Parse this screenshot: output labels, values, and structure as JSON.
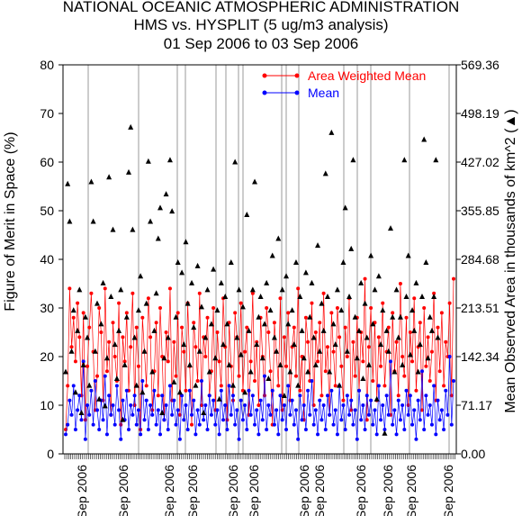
{
  "chart_data": {
    "type": "scatter",
    "title": "NATIONAL OCEANIC ATMOSPHERIC ADMINISTRATION",
    "subtitle": "HMS vs. HYSPLIT (5 ug/m3 analysis)",
    "date_range": "01 Sep 2006 to 03 Sep 2006",
    "ylabel": "Figure of Merit in Space (%)",
    "ylabel_right": "Mean Observed Area in thousands of km^2 (▲)",
    "ylim": [
      0,
      80
    ],
    "ylim_right": [
      0,
      569.36
    ],
    "yticks": [
      0,
      10,
      20,
      30,
      40,
      50,
      60,
      70,
      80
    ],
    "yticks_right": [
      "0.00",
      "71.17",
      "142.34",
      "213.51",
      "284.68",
      "355.85",
      "427.02",
      "498.19",
      "569.36"
    ],
    "x_tick_labels": [
      "Sep 2006",
      "Sep 2006",
      "Sep 2006",
      "Sep 2006",
      "Sep 2006",
      "Sep 2006",
      "Sep 2006",
      "Sep 2006",
      "Sep 2006",
      "Sep 2006",
      "Sep 2006",
      "Sep 2006"
    ],
    "colors": {
      "awm": "#ff0000",
      "mean": "#0000ff",
      "area": "#000000"
    },
    "series": [
      {
        "name": "Area Weighted Mean",
        "color": "#ff0000",
        "values": [
          5,
          14,
          34,
          22,
          28,
          19,
          31,
          24,
          12,
          29,
          7,
          18,
          26,
          33,
          21,
          9,
          16,
          30,
          25,
          11,
          34,
          17,
          23,
          8,
          27,
          20,
          15,
          31,
          6,
          24,
          19,
          29,
          13,
          22,
          33,
          10,
          26,
          18,
          5,
          28,
          21,
          14,
          32,
          24,
          9,
          17,
          27,
          12,
          30,
          20,
          7,
          25,
          19,
          34,
          11,
          23,
          16,
          29,
          8,
          26,
          21,
          13,
          31,
          18,
          6,
          27,
          22,
          15,
          33,
          10,
          24,
          20,
          28,
          12,
          17,
          30,
          9,
          25,
          19,
          14,
          32,
          22,
          7,
          27,
          18,
          11,
          29,
          24,
          16,
          31,
          13,
          21,
          26,
          8,
          19,
          33,
          15,
          23,
          10,
          28,
          20,
          12,
          30,
          25,
          17,
          6,
          27,
          21,
          14,
          32,
          9,
          24,
          18,
          29,
          11,
          22,
          26,
          16,
          34,
          13,
          20,
          7,
          28,
          23,
          15,
          31,
          10,
          25,
          19,
          27,
          12,
          33,
          17,
          22,
          8,
          29,
          21,
          14,
          30,
          24,
          18,
          11,
          26,
          20,
          32,
          9,
          23,
          16,
          28,
          13,
          25,
          19,
          36,
          7,
          22,
          30,
          15,
          27,
          11,
          24,
          18,
          31,
          14,
          21,
          26,
          8,
          29,
          17,
          23,
          12,
          35,
          20,
          16,
          28,
          10,
          25,
          19,
          32,
          13,
          22,
          27,
          9,
          30,
          18,
          24,
          15,
          21,
          33,
          11,
          26,
          17,
          29,
          14,
          23,
          20,
          31,
          12,
          36
        ]
      },
      {
        "name": "Mean",
        "color": "#0000ff",
        "values": [
          4,
          6,
          11,
          8,
          14,
          5,
          9,
          12,
          7,
          19,
          3,
          10,
          8,
          13,
          6,
          15,
          9,
          5,
          11,
          7,
          16,
          4,
          12,
          8,
          10,
          6,
          14,
          9,
          3,
          11,
          7,
          13,
          5,
          10,
          8,
          12,
          6,
          9,
          4,
          15,
          7,
          11,
          5,
          10,
          8,
          13,
          6,
          9,
          4,
          12,
          7,
          10,
          5,
          14,
          8,
          11,
          6,
          9,
          3,
          12,
          7,
          10,
          5,
          13,
          8,
          11,
          4,
          9,
          6,
          15,
          7,
          10,
          5,
          12,
          8,
          11,
          6,
          9,
          4,
          13,
          7,
          10,
          5,
          14,
          8,
          12,
          6,
          9,
          3,
          11,
          7,
          10,
          5,
          13,
          8,
          12,
          6,
          9,
          4,
          11,
          7,
          16,
          5,
          10,
          8,
          13,
          6,
          9,
          4,
          12,
          7,
          10,
          5,
          14,
          8,
          11,
          6,
          9,
          3,
          12,
          7,
          10,
          5,
          13,
          8,
          15,
          6,
          9,
          4,
          11,
          7,
          10,
          5,
          12,
          8,
          13,
          6,
          9,
          4,
          14,
          7,
          10,
          5,
          12,
          8,
          11,
          6,
          9,
          3,
          13,
          7,
          10,
          5,
          12,
          8,
          11,
          6,
          9,
          4,
          14,
          7,
          10,
          5,
          12,
          8,
          19,
          6,
          9,
          4,
          11,
          7,
          10,
          5,
          13,
          8,
          12,
          6,
          9,
          3,
          11,
          7,
          17,
          5,
          12,
          8,
          10,
          6,
          14,
          4,
          11,
          7,
          9,
          5,
          13,
          8,
          20,
          6,
          15
        ]
      },
      {
        "name": "Mean Observed Area",
        "color": "#000000",
        "values": [
          120,
          395,
          340,
          150,
          210,
          90,
          180,
          240,
          60,
          130,
          200,
          170,
          100,
          398,
          340,
          150,
          220,
          80,
          190,
          250,
          70,
          140,
          405,
          230,
          328,
          160,
          110,
          180,
          240,
          50,
          130,
          200,
          412,
          478,
          328,
          170,
          100,
          210,
          260,
          90,
          150,
          220,
          428,
          340,
          120,
          180,
          235,
          315,
          360,
          60,
          140,
          380,
          170,
          430,
          355,
          105,
          200,
          280,
          90,
          265,
          160,
          310,
          220,
          130,
          250,
          185,
          100,
          275,
          150,
          215,
          60,
          170,
          240,
          120,
          190,
          270,
          140,
          210,
          80,
          250,
          160,
          230,
          190,
          130,
          280,
          100,
          427,
          170,
          240,
          145,
          215,
          90,
          350,
          180,
          120,
          240,
          398,
          160,
          200,
          230,
          140,
          190,
          250,
          110,
          210,
          290,
          170,
          150,
          315,
          130,
          240,
          85,
          260,
          190,
          120,
          210,
          160,
          280,
          100,
          230,
          180,
          140,
          265,
          120,
          200,
          250,
          170,
          130,
          305,
          150,
          220,
          180,
          410,
          230,
          120,
          470,
          190,
          160,
          240,
          100,
          210,
          280,
          360,
          150,
          230,
          300,
          430,
          200,
          140,
          180,
          250,
          110,
          220,
          170,
          130,
          290,
          190,
          240,
          80,
          260,
          160,
          210,
          30,
          180,
          150,
          330,
          200,
          120,
          240,
          170,
          200,
          130,
          430,
          230,
          290,
          145,
          210,
          180,
          250,
          120,
          160,
          230,
          460,
          280,
          140,
          200,
          180,
          230,
          430,
          170
        ]
      }
    ]
  }
}
